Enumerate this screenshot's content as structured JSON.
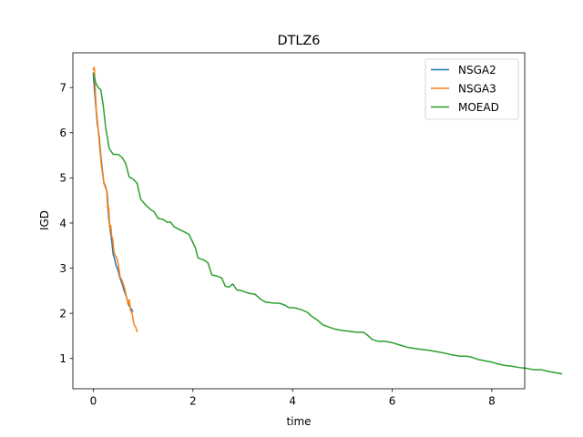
{
  "chart_data": {
    "type": "line",
    "title": "DTLZ6",
    "xlabel": "time",
    "ylabel": "IGD",
    "xlim": [
      -0.41,
      8.66
    ],
    "ylim": [
      0.33,
      7.77
    ],
    "xticks": [
      0,
      2,
      4,
      6,
      8
    ],
    "yticks": [
      1,
      2,
      3,
      4,
      5,
      6,
      7
    ],
    "grid": false,
    "legend_position": "top-right",
    "series": [
      {
        "name": "NSGA2",
        "color": "#1f77b4",
        "points": [
          [
            0.0,
            7.3
          ],
          [
            0.02,
            7.0
          ],
          [
            0.05,
            6.6
          ],
          [
            0.08,
            6.2
          ],
          [
            0.12,
            5.9
          ],
          [
            0.15,
            5.5
          ],
          [
            0.18,
            5.2
          ],
          [
            0.21,
            4.9
          ],
          [
            0.25,
            4.8
          ],
          [
            0.28,
            4.65
          ],
          [
            0.31,
            4.1
          ],
          [
            0.34,
            3.85
          ],
          [
            0.37,
            3.6
          ],
          [
            0.4,
            3.3
          ],
          [
            0.43,
            3.2
          ],
          [
            0.46,
            3.05
          ],
          [
            0.5,
            2.95
          ],
          [
            0.53,
            2.8
          ],
          [
            0.58,
            2.65
          ],
          [
            0.62,
            2.5
          ],
          [
            0.67,
            2.35
          ],
          [
            0.7,
            2.2
          ],
          [
            0.73,
            2.15
          ],
          [
            0.76,
            2.1
          ],
          [
            0.79,
            2.05
          ]
        ]
      },
      {
        "name": "NSGA3",
        "color": "#ff7f0e",
        "points": [
          [
            0.0,
            7.4
          ],
          [
            0.02,
            7.45
          ],
          [
            0.04,
            6.95
          ],
          [
            0.06,
            6.5
          ],
          [
            0.08,
            6.3
          ],
          [
            0.1,
            6.05
          ],
          [
            0.12,
            5.8
          ],
          [
            0.14,
            5.55
          ],
          [
            0.16,
            5.3
          ],
          [
            0.18,
            5.15
          ],
          [
            0.2,
            5.0
          ],
          [
            0.22,
            4.85
          ],
          [
            0.24,
            4.8
          ],
          [
            0.27,
            4.7
          ],
          [
            0.29,
            4.3
          ],
          [
            0.31,
            4.35
          ],
          [
            0.33,
            3.9
          ],
          [
            0.35,
            3.95
          ],
          [
            0.37,
            3.7
          ],
          [
            0.39,
            3.65
          ],
          [
            0.41,
            3.4
          ],
          [
            0.43,
            3.3
          ],
          [
            0.46,
            3.25
          ],
          [
            0.48,
            3.2
          ],
          [
            0.5,
            3.1
          ],
          [
            0.52,
            2.95
          ],
          [
            0.54,
            2.8
          ],
          [
            0.57,
            2.75
          ],
          [
            0.6,
            2.65
          ],
          [
            0.63,
            2.55
          ],
          [
            0.66,
            2.4
          ],
          [
            0.68,
            2.3
          ],
          [
            0.7,
            2.2
          ],
          [
            0.72,
            2.3
          ],
          [
            0.75,
            2.05
          ],
          [
            0.78,
            2.0
          ],
          [
            0.8,
            1.85
          ],
          [
            0.82,
            1.75
          ],
          [
            0.85,
            1.7
          ],
          [
            0.88,
            1.6
          ]
        ]
      },
      {
        "name": "MOEAD",
        "color": "#2ca02c",
        "points": [
          [
            0.0,
            7.32
          ],
          [
            0.05,
            7.1
          ],
          [
            0.1,
            7.0
          ],
          [
            0.15,
            6.95
          ],
          [
            0.2,
            6.6
          ],
          [
            0.25,
            6.1
          ],
          [
            0.32,
            5.65
          ],
          [
            0.4,
            5.52
          ],
          [
            0.5,
            5.52
          ],
          [
            0.58,
            5.45
          ],
          [
            0.65,
            5.32
          ],
          [
            0.72,
            5.02
          ],
          [
            0.8,
            4.97
          ],
          [
            0.88,
            4.88
          ],
          [
            0.95,
            4.53
          ],
          [
            1.05,
            4.4
          ],
          [
            1.15,
            4.3
          ],
          [
            1.22,
            4.25
          ],
          [
            1.3,
            4.1
          ],
          [
            1.4,
            4.08
          ],
          [
            1.48,
            4.02
          ],
          [
            1.55,
            4.02
          ],
          [
            1.62,
            3.92
          ],
          [
            1.7,
            3.87
          ],
          [
            1.8,
            3.82
          ],
          [
            1.92,
            3.75
          ],
          [
            2.05,
            3.45
          ],
          [
            2.1,
            3.23
          ],
          [
            2.22,
            3.18
          ],
          [
            2.3,
            3.12
          ],
          [
            2.38,
            2.85
          ],
          [
            2.5,
            2.82
          ],
          [
            2.58,
            2.78
          ],
          [
            2.65,
            2.6
          ],
          [
            2.72,
            2.58
          ],
          [
            2.8,
            2.65
          ],
          [
            2.88,
            2.52
          ],
          [
            2.98,
            2.5
          ],
          [
            3.1,
            2.45
          ],
          [
            3.25,
            2.42
          ],
          [
            3.35,
            2.32
          ],
          [
            3.45,
            2.25
          ],
          [
            3.6,
            2.23
          ],
          [
            3.75,
            2.22
          ],
          [
            3.85,
            2.18
          ],
          [
            3.92,
            2.13
          ],
          [
            4.05,
            2.12
          ],
          [
            4.18,
            2.08
          ],
          [
            4.3,
            2.02
          ],
          [
            4.4,
            1.92
          ],
          [
            4.5,
            1.85
          ],
          [
            4.6,
            1.75
          ],
          [
            4.72,
            1.7
          ],
          [
            4.85,
            1.65
          ],
          [
            5.0,
            1.62
          ],
          [
            5.15,
            1.6
          ],
          [
            5.3,
            1.58
          ],
          [
            5.42,
            1.58
          ],
          [
            5.5,
            1.52
          ],
          [
            5.6,
            1.42
          ],
          [
            5.72,
            1.38
          ],
          [
            5.85,
            1.38
          ],
          [
            6.0,
            1.35
          ],
          [
            6.15,
            1.3
          ],
          [
            6.3,
            1.25
          ],
          [
            6.45,
            1.22
          ],
          [
            6.6,
            1.2
          ],
          [
            6.75,
            1.18
          ],
          [
            6.9,
            1.15
          ],
          [
            7.05,
            1.12
          ],
          [
            7.2,
            1.08
          ],
          [
            7.35,
            1.05
          ],
          [
            7.5,
            1.05
          ],
          [
            7.62,
            1.02
          ],
          [
            7.72,
            0.98
          ],
          [
            7.85,
            0.95
          ],
          [
            8.0,
            0.92
          ],
          [
            8.12,
            0.88
          ],
          [
            8.25,
            0.85
          ],
          [
            8.4,
            0.83
          ],
          [
            8.55,
            0.8
          ],
          [
            8.7,
            0.78
          ],
          [
            8.85,
            0.75
          ],
          [
            9.0,
            0.75
          ],
          [
            9.1,
            0.72
          ],
          [
            9.2,
            0.7
          ],
          [
            9.3,
            0.68
          ],
          [
            9.4,
            0.66
          ]
        ]
      }
    ]
  }
}
